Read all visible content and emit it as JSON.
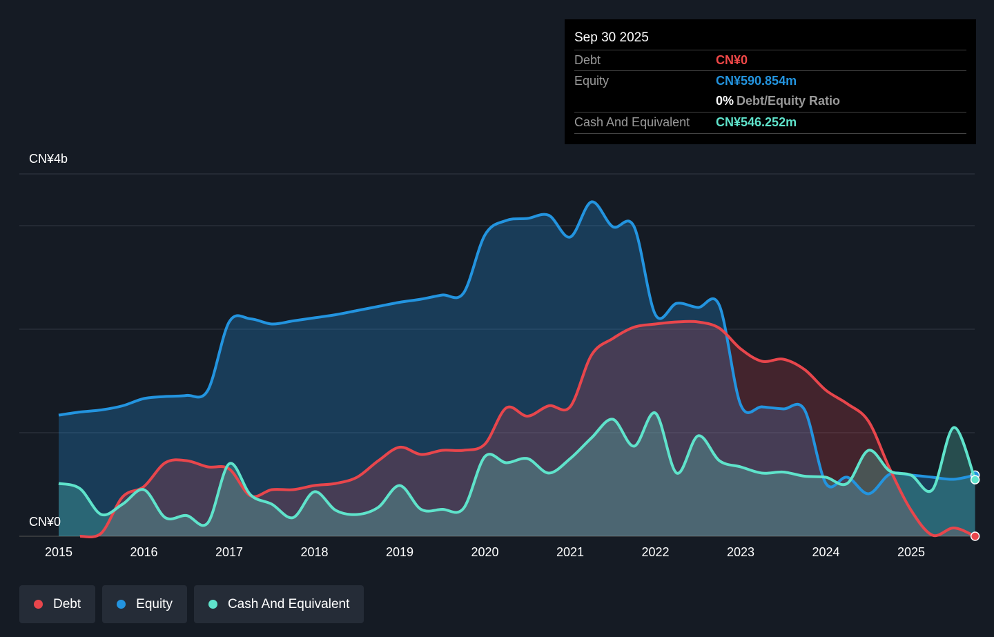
{
  "tooltip": {
    "date": "Sep 30 2025",
    "debt_label": "Debt",
    "debt_value": "CN¥0",
    "equity_label": "Equity",
    "equity_value": "CN¥590.854m",
    "ratio_value": "0%",
    "ratio_label": "Debt/Equity Ratio",
    "cash_label": "Cash And Equivalent",
    "cash_value": "CN¥546.252m"
  },
  "colors": {
    "debt": "#e8464c",
    "equity": "#2394df",
    "cash": "#5fe3cb",
    "background": "#151b24"
  },
  "chart_data": {
    "type": "area",
    "y_unit": "CN¥ billions",
    "ylim": [
      0,
      3.5
    ],
    "y_tick_labels": [
      {
        "value": 0,
        "label": "CN¥0"
      },
      {
        "value": 3.5,
        "label": "CN¥4b"
      }
    ],
    "gridlines": [
      0,
      1,
      2,
      3,
      3.5
    ],
    "x_tick_labels": [
      "2015",
      "2016",
      "2017",
      "2018",
      "2019",
      "2020",
      "2021",
      "2022",
      "2023",
      "2024",
      "2025"
    ],
    "xlim": [
      2015,
      2025.75
    ],
    "legend": [
      "Debt",
      "Equity",
      "Cash And Equivalent"
    ],
    "legend_placement": "bottom-left",
    "series": [
      {
        "name": "Equity",
        "x_start": 2015,
        "step": 0.25,
        "values": [
          1.17,
          1.2,
          1.22,
          1.26,
          1.33,
          1.35,
          1.36,
          1.41,
          2.07,
          2.1,
          2.05,
          2.08,
          2.11,
          2.14,
          2.18,
          2.22,
          2.26,
          2.29,
          2.33,
          2.35,
          2.91,
          3.05,
          3.07,
          3.1,
          2.89,
          3.23,
          2.99,
          2.99,
          2.14,
          2.25,
          2.21,
          2.23,
          1.27,
          1.25,
          1.23,
          1.22,
          0.51,
          0.57,
          0.41,
          0.6,
          0.59,
          0.57,
          0.55,
          0.591
        ]
      },
      {
        "name": "Debt",
        "x_start": 2015.25,
        "step": 0.25,
        "values": [
          0,
          0.03,
          0.38,
          0.48,
          0.71,
          0.73,
          0.67,
          0.65,
          0.39,
          0.45,
          0.45,
          0.49,
          0.51,
          0.57,
          0.73,
          0.86,
          0.79,
          0.83,
          0.83,
          0.89,
          1.24,
          1.16,
          1.26,
          1.25,
          1.75,
          1.91,
          2.02,
          2.05,
          2.07,
          2.07,
          2.01,
          1.81,
          1.69,
          1.71,
          1.61,
          1.41,
          1.28,
          1.11,
          0.65,
          0.25,
          0.01,
          0.08,
          0
        ]
      },
      {
        "name": "Cash And Equivalent",
        "x_start": 2015,
        "step": 0.25,
        "values": [
          0.51,
          0.46,
          0.21,
          0.31,
          0.45,
          0.18,
          0.2,
          0.13,
          0.7,
          0.4,
          0.31,
          0.18,
          0.43,
          0.25,
          0.21,
          0.28,
          0.49,
          0.26,
          0.26,
          0.27,
          0.77,
          0.71,
          0.75,
          0.61,
          0.75,
          0.95,
          1.13,
          0.87,
          1.19,
          0.61,
          0.97,
          0.73,
          0.67,
          0.61,
          0.62,
          0.58,
          0.57,
          0.51,
          0.83,
          0.63,
          0.59,
          0.45,
          1.05,
          0.546
        ]
      }
    ]
  }
}
